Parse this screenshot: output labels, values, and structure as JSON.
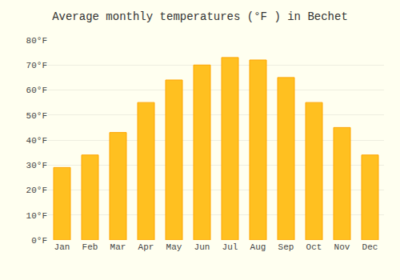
{
  "chart_data": {
    "type": "bar",
    "title": "Average monthly temperatures (°F ) in Bechet",
    "categories": [
      "Jan",
      "Feb",
      "Mar",
      "Apr",
      "May",
      "Jun",
      "Jul",
      "Aug",
      "Sep",
      "Oct",
      "Nov",
      "Dec"
    ],
    "values": [
      29,
      34,
      43,
      55,
      64,
      70,
      73,
      72,
      65,
      55,
      45,
      34
    ],
    "color": "#FFC020",
    "ylim": [
      0,
      80
    ],
    "yticks": [
      {
        "value": 0,
        "label": "0°F"
      },
      {
        "value": 10,
        "label": "10°F"
      },
      {
        "value": 20,
        "label": "20°F"
      },
      {
        "value": 30,
        "label": "30°F"
      },
      {
        "value": 40,
        "label": "40°F"
      },
      {
        "value": 50,
        "label": "50°F"
      },
      {
        "value": 60,
        "label": "60°F"
      },
      {
        "value": 70,
        "label": "70°F"
      },
      {
        "value": 80,
        "label": "80°F"
      }
    ],
    "grid": true
  }
}
